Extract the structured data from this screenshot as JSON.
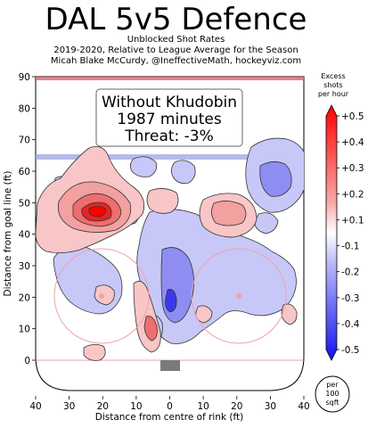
{
  "header": {
    "title": "DAL 5v5 Defence",
    "subtitle_1": "Unblocked Shot Rates",
    "subtitle_2": "2019-2020, Relative to League Average for the Season",
    "subtitle_3": "Micah Blake McCurdy, @IneffectiveMath, hockeyviz.com"
  },
  "chart_data": {
    "type": "heatmap",
    "xlabel": "Distance from centre of rink (ft)",
    "ylabel": "Distance from goal line (ft)",
    "xlim": [
      42.5,
      -42.5
    ],
    "ylim": [
      -11,
      90
    ],
    "x_ticks": [
      "40",
      "30",
      "20",
      "10",
      "0",
      "10",
      "20",
      "30",
      "40"
    ],
    "y_ticks": [
      "0",
      "10",
      "20",
      "30",
      "40",
      "50",
      "60",
      "70",
      "80",
      "90"
    ],
    "annotation": {
      "line_1": "Without Khudobin",
      "line_2": "1987 minutes",
      "line_3": "Threat: -3%"
    },
    "colorbar": {
      "title_line_1": "Excess",
      "title_line_2": "shots",
      "title_line_3": "per hour",
      "ticks": [
        "+0.5",
        "+0.4",
        "+0.3",
        "+0.2",
        "+0.1",
        "-0.1",
        "-0.2",
        "-0.3",
        "-0.4",
        "-0.5"
      ],
      "positive_color": "#e8141a",
      "negative_color": "#1e20e8"
    },
    "unit_badge": {
      "line_1": "per",
      "line_2": "100",
      "line_3": "sqft"
    }
  }
}
